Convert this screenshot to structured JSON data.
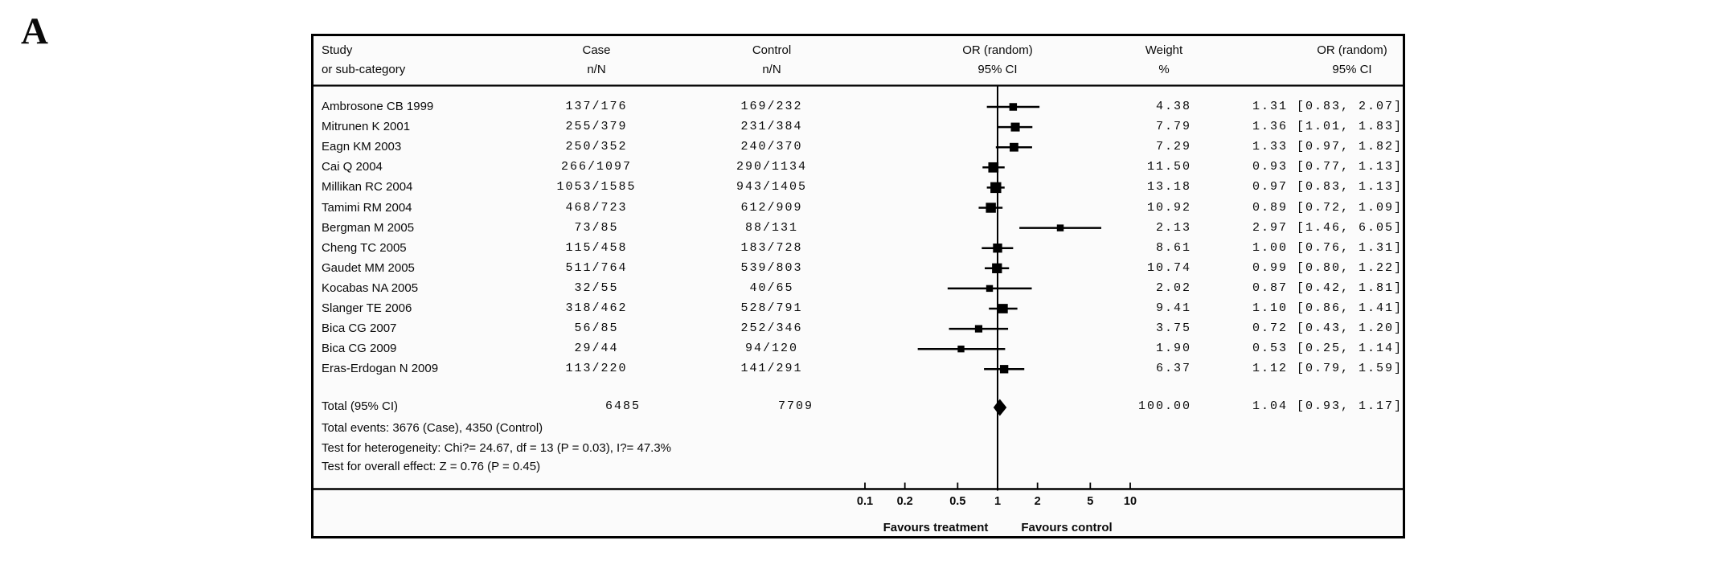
{
  "panel_label": "A",
  "header": {
    "col_study_line1": "Study",
    "col_study_line2": "or sub-category",
    "col_case_line1": "Case",
    "col_case_line2": "n/N",
    "col_control_line1": "Control",
    "col_control_line2": "n/N",
    "col_plot_line1": "OR (random)",
    "col_plot_line2": "95% CI",
    "col_weight_line1": "Weight",
    "col_weight_line2": "%",
    "col_or_line1": "OR (random)",
    "col_or_line2": "95% CI"
  },
  "chart_data": {
    "type": "forest",
    "effect_measure": "OR (random) 95% CI",
    "x_axis": {
      "scale": "log",
      "ticks": [
        0.1,
        0.2,
        0.5,
        1,
        2,
        5,
        10
      ],
      "tick_labels": [
        "0.1",
        "0.2",
        "0.5",
        "1",
        "2",
        "5",
        "10"
      ],
      "range": [
        0.1,
        10
      ]
    },
    "favours_left": "Favours treatment",
    "favours_right": "Favours control",
    "studies": [
      {
        "name": "Ambrosone CB 1999",
        "case": "137/176",
        "control": "169/232",
        "weight": "4.38",
        "or": 1.31,
        "ci_low": 0.83,
        "ci_high": 2.07,
        "or_text": "1.31 [0.83, 2.07]"
      },
      {
        "name": "Mitrunen K 2001",
        "case": "255/379",
        "control": "231/384",
        "weight": "7.79",
        "or": 1.36,
        "ci_low": 1.01,
        "ci_high": 1.83,
        "or_text": "1.36 [1.01, 1.83]"
      },
      {
        "name": "Eagn KM 2003",
        "case": "250/352",
        "control": "240/370",
        "weight": "7.29",
        "or": 1.33,
        "ci_low": 0.97,
        "ci_high": 1.82,
        "or_text": "1.33 [0.97, 1.82]"
      },
      {
        "name": "Cai Q 2004",
        "case": "266/1097",
        "control": "290/1134",
        "weight": "11.50",
        "or": 0.93,
        "ci_low": 0.77,
        "ci_high": 1.13,
        "or_text": "0.93 [0.77, 1.13]"
      },
      {
        "name": "Millikan RC 2004",
        "case": "1053/1585",
        "control": "943/1405",
        "weight": "13.18",
        "or": 0.97,
        "ci_low": 0.83,
        "ci_high": 1.13,
        "or_text": "0.97 [0.83, 1.13]"
      },
      {
        "name": "Tamimi RM 2004",
        "case": "468/723",
        "control": "612/909",
        "weight": "10.92",
        "or": 0.89,
        "ci_low": 0.72,
        "ci_high": 1.09,
        "or_text": "0.89 [0.72, 1.09]"
      },
      {
        "name": "Bergman M 2005",
        "case": "73/85",
        "control": "88/131",
        "weight": "2.13",
        "or": 2.97,
        "ci_low": 1.46,
        "ci_high": 6.05,
        "or_text": "2.97 [1.46, 6.05]"
      },
      {
        "name": "Cheng TC 2005",
        "case": "115/458",
        "control": "183/728",
        "weight": "8.61",
        "or": 1.0,
        "ci_low": 0.76,
        "ci_high": 1.31,
        "or_text": "1.00 [0.76, 1.31]"
      },
      {
        "name": "Gaudet MM 2005",
        "case": "511/764",
        "control": "539/803",
        "weight": "10.74",
        "or": 0.99,
        "ci_low": 0.8,
        "ci_high": 1.22,
        "or_text": "0.99 [0.80, 1.22]"
      },
      {
        "name": "Kocabas NA 2005",
        "case": "32/55",
        "control": "40/65",
        "weight": "2.02",
        "or": 0.87,
        "ci_low": 0.42,
        "ci_high": 1.81,
        "or_text": "0.87 [0.42, 1.81]"
      },
      {
        "name": "Slanger TE 2006",
        "case": "318/462",
        "control": "528/791",
        "weight": "9.41",
        "or": 1.1,
        "ci_low": 0.86,
        "ci_high": 1.41,
        "or_text": "1.10 [0.86, 1.41]"
      },
      {
        "name": "Bica CG 2007",
        "case": "56/85",
        "control": "252/346",
        "weight": "3.75",
        "or": 0.72,
        "ci_low": 0.43,
        "ci_high": 1.2,
        "or_text": "0.72 [0.43, 1.20]"
      },
      {
        "name": "Bica CG 2009",
        "case": "29/44",
        "control": "94/120",
        "weight": "1.90",
        "or": 0.53,
        "ci_low": 0.25,
        "ci_high": 1.14,
        "or_text": "0.53 [0.25, 1.14]"
      },
      {
        "name": "Eras-Erdogan N 2009",
        "case": "113/220",
        "control": "141/291",
        "weight": "6.37",
        "or": 1.12,
        "ci_low": 0.79,
        "ci_high": 1.59,
        "or_text": "1.12 [0.79, 1.59]"
      }
    ],
    "total": {
      "label": "Total (95% CI)",
      "case": "6485",
      "control": "7709",
      "weight": "100.00",
      "or": 1.04,
      "ci_low": 0.93,
      "ci_high": 1.17,
      "or_text": "1.04 [0.93, 1.17]"
    },
    "total_events": "Total events: 3676 (Case), 4350 (Control)",
    "heterogeneity": "Test for heterogeneity: Chi?= 24.67, df = 13 (P = 0.03), I?= 47.3%",
    "overall_effect": "Test for overall effect: Z = 0.76 (P = 0.45)"
  }
}
